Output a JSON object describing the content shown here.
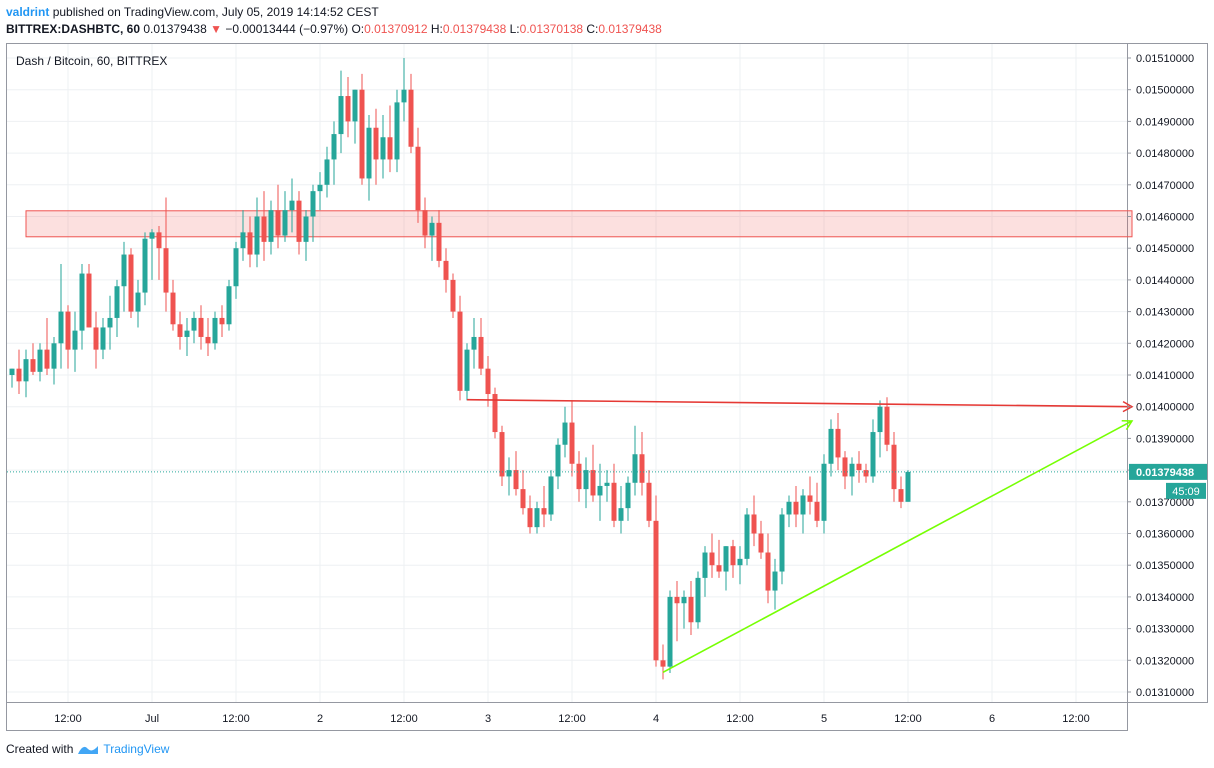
{
  "header": {
    "user": "valdrint",
    "published": "published on TradingView.com, July 05, 2019 14:14:52 CEST",
    "symbol": "BITTREX:DASHBTC, 60",
    "last": "0.01379438",
    "arrow": "▼",
    "change": "−0.00013444 (−0.97%)",
    "o_label": "O:",
    "o": "0.01370912",
    "h_label": "H:",
    "h": "0.01379438",
    "l_label": "L:",
    "l": "0.01370138",
    "c_label": "C:",
    "c": "0.01379438"
  },
  "legend_title": "Dash / Bitcoin, 60, BITTREX",
  "footer": {
    "created": "Created with",
    "brand": "TradingView"
  },
  "colors": {
    "up": "#26a69a",
    "down": "#ef5350",
    "zone": "#ef5350",
    "resistance": "#e53935",
    "support": "#76ff03",
    "price_line": "#26a69a"
  },
  "chart_data": {
    "type": "candlestick",
    "title": "Dash / Bitcoin, 60, BITTREX",
    "ylim": [
      0.01305,
      0.01516
    ],
    "y_ticks": [
      "0.01510000",
      "0.01500000",
      "0.01490000",
      "0.01480000",
      "0.01470000",
      "0.01460000",
      "0.01450000",
      "0.01440000",
      "0.01430000",
      "0.01420000",
      "0.01410000",
      "0.01400000",
      "0.01390000",
      "0.01380000",
      "0.01370000",
      "0.01360000",
      "0.01350000",
      "0.01340000",
      "0.01330000",
      "0.01320000",
      "0.01310000"
    ],
    "x_ticks": [
      {
        "label": "12:00",
        "t": 0
      },
      {
        "label": "Jul",
        "t": 12
      },
      {
        "label": "12:00",
        "t": 24
      },
      {
        "label": "2",
        "t": 36
      },
      {
        "label": "12:00",
        "t": 48
      },
      {
        "label": "3",
        "t": 60
      },
      {
        "label": "12:00",
        "t": 72
      },
      {
        "label": "4",
        "t": 84
      },
      {
        "label": "12:00",
        "t": 96
      },
      {
        "label": "5",
        "t": 108
      },
      {
        "label": "12:00",
        "t": 120
      },
      {
        "label": "6",
        "t": 132
      },
      {
        "label": "12:00",
        "t": 144
      }
    ],
    "current_price": "0.01379438",
    "countdown": "45:09",
    "candles": [
      [
        -8,
        0.0141,
        0.01412,
        0.01406,
        0.01412
      ],
      [
        -7,
        0.01412,
        0.01418,
        0.01404,
        0.01408
      ],
      [
        -6,
        0.01408,
        0.01418,
        0.01403,
        0.01415
      ],
      [
        -5,
        0.01415,
        0.0142,
        0.0141,
        0.01411
      ],
      [
        -4,
        0.01411,
        0.0142,
        0.01408,
        0.01418
      ],
      [
        -3,
        0.01418,
        0.01428,
        0.0141,
        0.01412
      ],
      [
        -2,
        0.01412,
        0.01422,
        0.01407,
        0.0142
      ],
      [
        -1,
        0.0142,
        0.01445,
        0.01412,
        0.0143
      ],
      [
        0,
        0.0143,
        0.01432,
        0.01412,
        0.01418
      ],
      [
        1,
        0.01418,
        0.0143,
        0.01411,
        0.01424
      ],
      [
        2,
        0.01424,
        0.01445,
        0.01418,
        0.01442
      ],
      [
        3,
        0.01442,
        0.01445,
        0.01425,
        0.01425
      ],
      [
        4,
        0.01425,
        0.0143,
        0.01412,
        0.01418
      ],
      [
        5,
        0.01418,
        0.01428,
        0.01415,
        0.01425
      ],
      [
        6,
        0.01425,
        0.01435,
        0.01418,
        0.01428
      ],
      [
        7,
        0.01428,
        0.0144,
        0.01422,
        0.01438
      ],
      [
        8,
        0.01438,
        0.01452,
        0.0143,
        0.01448
      ],
      [
        9,
        0.01448,
        0.0145,
        0.01428,
        0.0143
      ],
      [
        10,
        0.0143,
        0.0144,
        0.01425,
        0.01436
      ],
      [
        11,
        0.01436,
        0.01455,
        0.01432,
        0.01453
      ],
      [
        12,
        0.01453,
        0.01456,
        0.0144,
        0.01455
      ],
      [
        13,
        0.01455,
        0.01457,
        0.0144,
        0.0145
      ],
      [
        14,
        0.0145,
        0.01466,
        0.0143,
        0.01436
      ],
      [
        15,
        0.01436,
        0.0144,
        0.01424,
        0.01426
      ],
      [
        16,
        0.01426,
        0.0143,
        0.01418,
        0.01422
      ],
      [
        17,
        0.01422,
        0.01428,
        0.01416,
        0.01424
      ],
      [
        18,
        0.01424,
        0.0143,
        0.0142,
        0.01428
      ],
      [
        19,
        0.01428,
        0.01432,
        0.01418,
        0.01422
      ],
      [
        20,
        0.01422,
        0.01428,
        0.01416,
        0.0142
      ],
      [
        21,
        0.0142,
        0.0143,
        0.01418,
        0.01428
      ],
      [
        22,
        0.01428,
        0.01432,
        0.01422,
        0.01426
      ],
      [
        23,
        0.01426,
        0.0144,
        0.01424,
        0.01438
      ],
      [
        24,
        0.01438,
        0.01452,
        0.01434,
        0.0145
      ],
      [
        25,
        0.0145,
        0.01462,
        0.01446,
        0.01455
      ],
      [
        26,
        0.01455,
        0.0146,
        0.01444,
        0.01448
      ],
      [
        27,
        0.01448,
        0.01466,
        0.01444,
        0.0146
      ],
      [
        28,
        0.0146,
        0.01468,
        0.01446,
        0.01452
      ],
      [
        29,
        0.01452,
        0.01465,
        0.01448,
        0.01462
      ],
      [
        30,
        0.01462,
        0.0147,
        0.0145,
        0.01454
      ],
      [
        31,
        0.01454,
        0.01468,
        0.01452,
        0.01462
      ],
      [
        32,
        0.01462,
        0.01472,
        0.01455,
        0.01465
      ],
      [
        33,
        0.01465,
        0.01468,
        0.01448,
        0.01452
      ],
      [
        34,
        0.01452,
        0.01462,
        0.01446,
        0.0146
      ],
      [
        35,
        0.0146,
        0.0147,
        0.01452,
        0.01468
      ],
      [
        36,
        0.01468,
        0.01474,
        0.01462,
        0.0147
      ],
      [
        37,
        0.0147,
        0.01482,
        0.01466,
        0.01478
      ],
      [
        38,
        0.01478,
        0.0149,
        0.0147,
        0.01486
      ],
      [
        39,
        0.01486,
        0.01506,
        0.0148,
        0.01498
      ],
      [
        40,
        0.01498,
        0.01504,
        0.01485,
        0.0149
      ],
      [
        41,
        0.0149,
        0.015,
        0.01483,
        0.015
      ],
      [
        42,
        0.015,
        0.01505,
        0.0147,
        0.01472
      ],
      [
        43,
        0.01472,
        0.01492,
        0.01465,
        0.01488
      ],
      [
        44,
        0.01488,
        0.01494,
        0.0147,
        0.01478
      ],
      [
        45,
        0.01478,
        0.01492,
        0.01472,
        0.01485
      ],
      [
        46,
        0.01485,
        0.01495,
        0.01474,
        0.01478
      ],
      [
        47,
        0.01478,
        0.015,
        0.01474,
        0.01496
      ],
      [
        48,
        0.01496,
        0.0151,
        0.0149,
        0.015
      ],
      [
        49,
        0.015,
        0.01505,
        0.0148,
        0.01482
      ],
      [
        50,
        0.01482,
        0.01488,
        0.01458,
        0.01462
      ],
      [
        51,
        0.01462,
        0.01466,
        0.0145,
        0.01454
      ],
      [
        52,
        0.01454,
        0.0146,
        0.01446,
        0.01458
      ],
      [
        53,
        0.01458,
        0.01462,
        0.01444,
        0.01446
      ],
      [
        54,
        0.01446,
        0.0145,
        0.01436,
        0.0144
      ],
      [
        55,
        0.0144,
        0.01442,
        0.01428,
        0.0143
      ],
      [
        56,
        0.0143,
        0.01435,
        0.01402,
        0.01405
      ],
      [
        57,
        0.01405,
        0.0142,
        0.01402,
        0.01418
      ],
      [
        58,
        0.01418,
        0.01428,
        0.01412,
        0.01422
      ],
      [
        59,
        0.01422,
        0.01428,
        0.0141,
        0.01412
      ],
      [
        60,
        0.01412,
        0.01416,
        0.014,
        0.01404
      ],
      [
        61,
        0.01404,
        0.01406,
        0.0139,
        0.01392
      ],
      [
        62,
        0.01392,
        0.01394,
        0.01375,
        0.01378
      ],
      [
        63,
        0.01378,
        0.01384,
        0.01372,
        0.0138
      ],
      [
        64,
        0.0138,
        0.01386,
        0.01372,
        0.01374
      ],
      [
        65,
        0.01374,
        0.0138,
        0.01366,
        0.01368
      ],
      [
        66,
        0.01368,
        0.01372,
        0.0136,
        0.01362
      ],
      [
        67,
        0.01362,
        0.0137,
        0.0136,
        0.01368
      ],
      [
        68,
        0.01368,
        0.01375,
        0.01362,
        0.01366
      ],
      [
        69,
        0.01366,
        0.0138,
        0.01364,
        0.01378
      ],
      [
        70,
        0.01378,
        0.0139,
        0.01374,
        0.01388
      ],
      [
        71,
        0.01388,
        0.014,
        0.01384,
        0.01395
      ],
      [
        72,
        0.01395,
        0.01402,
        0.01378,
        0.01382
      ],
      [
        73,
        0.01382,
        0.01386,
        0.0137,
        0.01374
      ],
      [
        74,
        0.01374,
        0.01384,
        0.01368,
        0.0138
      ],
      [
        75,
        0.0138,
        0.01388,
        0.0137,
        0.01372
      ],
      [
        76,
        0.01372,
        0.01382,
        0.01364,
        0.01375
      ],
      [
        77,
        0.01375,
        0.0138,
        0.0137,
        0.01376
      ],
      [
        78,
        0.01376,
        0.01382,
        0.01362,
        0.01364
      ],
      [
        79,
        0.01364,
        0.01375,
        0.0136,
        0.01368
      ],
      [
        80,
        0.01368,
        0.01378,
        0.01364,
        0.01376
      ],
      [
        81,
        0.01376,
        0.01394,
        0.01372,
        0.01385
      ],
      [
        82,
        0.01385,
        0.01392,
        0.01372,
        0.01376
      ],
      [
        83,
        0.01376,
        0.0138,
        0.01362,
        0.01364
      ],
      [
        84,
        0.01364,
        0.01372,
        0.01318,
        0.0132
      ],
      [
        85,
        0.0132,
        0.01325,
        0.01314,
        0.01318
      ],
      [
        86,
        0.01318,
        0.01342,
        0.01316,
        0.0134
      ],
      [
        87,
        0.0134,
        0.01345,
        0.01326,
        0.01338
      ],
      [
        88,
        0.01338,
        0.01342,
        0.0133,
        0.0134
      ],
      [
        89,
        0.0134,
        0.01345,
        0.01328,
        0.01332
      ],
      [
        90,
        0.01332,
        0.01348,
        0.0133,
        0.01346
      ],
      [
        91,
        0.01346,
        0.01356,
        0.0134,
        0.01354
      ],
      [
        92,
        0.01354,
        0.0136,
        0.01346,
        0.0135
      ],
      [
        93,
        0.0135,
        0.01358,
        0.01346,
        0.01348
      ],
      [
        94,
        0.01348,
        0.01356,
        0.01342,
        0.01356
      ],
      [
        95,
        0.01356,
        0.01358,
        0.01346,
        0.0135
      ],
      [
        96,
        0.0135,
        0.01356,
        0.01344,
        0.01352
      ],
      [
        97,
        0.01352,
        0.01368,
        0.0135,
        0.01366
      ],
      [
        98,
        0.01366,
        0.01372,
        0.01356,
        0.0136
      ],
      [
        99,
        0.0136,
        0.01364,
        0.01352,
        0.01354
      ],
      [
        100,
        0.01354,
        0.0136,
        0.01338,
        0.01342
      ],
      [
        101,
        0.01342,
        0.01352,
        0.01336,
        0.01348
      ],
      [
        102,
        0.01348,
        0.01368,
        0.01344,
        0.01366
      ],
      [
        103,
        0.01366,
        0.01372,
        0.01362,
        0.0137
      ],
      [
        104,
        0.0137,
        0.01375,
        0.01362,
        0.01366
      ],
      [
        105,
        0.01366,
        0.01374,
        0.0136,
        0.01372
      ],
      [
        106,
        0.01372,
        0.01378,
        0.01366,
        0.0137
      ],
      [
        107,
        0.0137,
        0.01376,
        0.01362,
        0.01364
      ],
      [
        108,
        0.01364,
        0.01385,
        0.0136,
        0.01382
      ],
      [
        109,
        0.01382,
        0.01396,
        0.01378,
        0.01393
      ],
      [
        110,
        0.01393,
        0.01398,
        0.0138,
        0.01384
      ],
      [
        111,
        0.01384,
        0.01386,
        0.01374,
        0.01378
      ],
      [
        112,
        0.01378,
        0.01384,
        0.01372,
        0.01382
      ],
      [
        113,
        0.01382,
        0.01386,
        0.01376,
        0.0138
      ],
      [
        114,
        0.0138,
        0.01382,
        0.01376,
        0.01378
      ],
      [
        115,
        0.01378,
        0.01396,
        0.01376,
        0.01392
      ],
      [
        116,
        0.01392,
        0.01402,
        0.01384,
        0.014
      ],
      [
        117,
        0.014,
        0.01403,
        0.01386,
        0.01388
      ],
      [
        118,
        0.01388,
        0.01392,
        0.0137,
        0.01374
      ],
      [
        119,
        0.01374,
        0.01378,
        0.01368,
        0.0137
      ],
      [
        120,
        0.0137,
        0.0138,
        0.0137,
        0.01379438
      ]
    ],
    "zone": {
      "t0": -6,
      "t1": 152,
      "p_top": 0.014618,
      "p_bot": 0.014536
    },
    "resistance_line": {
      "t0": 57,
      "p0": 0.014022,
      "t1": 152,
      "p1": 0.014
    },
    "support_line": {
      "t0": 85,
      "p0": 0.013162,
      "t1": 152,
      "p1": 0.013955
    }
  }
}
